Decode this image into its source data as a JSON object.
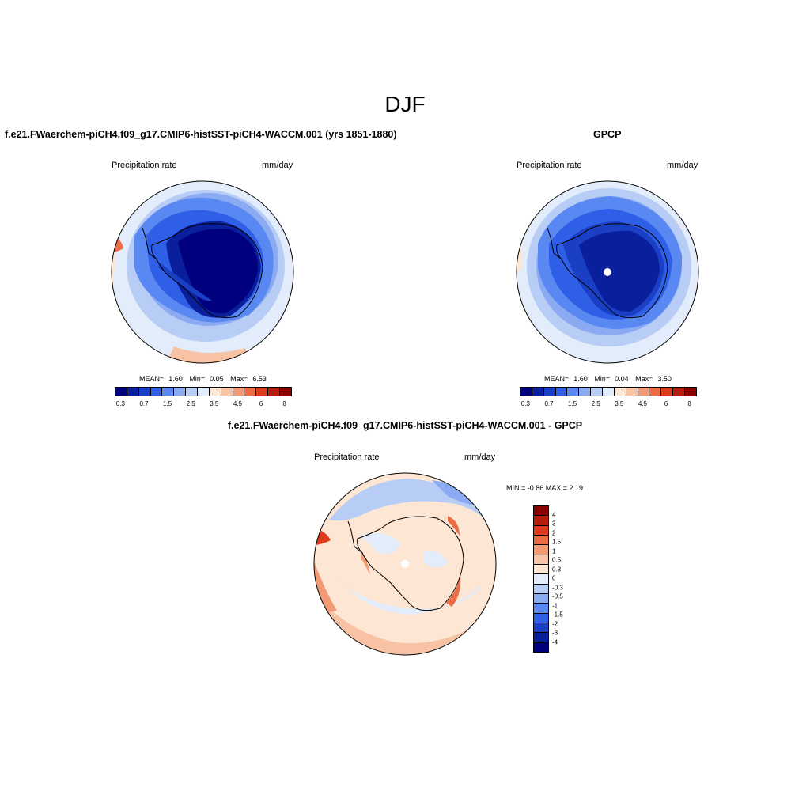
{
  "figure": {
    "title": "DJF"
  },
  "panels": {
    "model": {
      "title": "f.e21.FWaerchem-piCH4.f09_g17.CMIP6-histSST-piCH4-WACCM.001 (yrs 1851-1880)",
      "variable": "Precipitation rate",
      "units": "mm/day",
      "stats": {
        "mean_label": "MEAN=",
        "mean": "1.60",
        "min_label": "Min=",
        "min": "0.05",
        "max_label": "Max=",
        "max": "6.53"
      }
    },
    "obs": {
      "title": "GPCP",
      "variable": "Precipitation rate",
      "units": "mm/day",
      "stats": {
        "mean_label": "MEAN=",
        "mean": "1.60",
        "min_label": "Min=",
        "min": "0.04",
        "max_label": "Max=",
        "max": "3.50"
      }
    },
    "diff": {
      "title": "f.e21.FWaerchem-piCH4.f09_g17.CMIP6-histSST-piCH4-WACCM.001 - GPCP",
      "variable": "Precipitation rate",
      "units": "mm/day",
      "stats_text": "MIN =  -0.86 MAX =   2.19"
    }
  },
  "colorbar_precip": {
    "colors": [
      "#00007f",
      "#0a1f9c",
      "#1a3fc4",
      "#2f5fe6",
      "#5a88f2",
      "#8aaaf2",
      "#b8cdf5",
      "#e3ecfb",
      "#fde6d4",
      "#f8c3a4",
      "#f29a74",
      "#eb6c45",
      "#de3b1c",
      "#b71c0c",
      "#8b0000"
    ],
    "ticks": [
      "0.3",
      "0.7",
      "1.5",
      "2.5",
      "3.5",
      "4.5",
      "6",
      "8"
    ]
  },
  "colorbar_diff": {
    "colors": [
      "#8b0000",
      "#b71c0c",
      "#de3b1c",
      "#eb6c45",
      "#f29a74",
      "#f8c3a4",
      "#fde6d4",
      "#e3ecfb",
      "#b8cdf5",
      "#8aaaf2",
      "#5a88f2",
      "#2f5fe6",
      "#1a3fc4",
      "#0a1f9c",
      "#00007f"
    ],
    "ticks": [
      "4",
      "3",
      "2",
      "1.5",
      "1",
      "0.5",
      "0.3",
      "0",
      "-0.3",
      "-0.5",
      "-1",
      "-1.5",
      "-2",
      "-3",
      "-4"
    ]
  }
}
